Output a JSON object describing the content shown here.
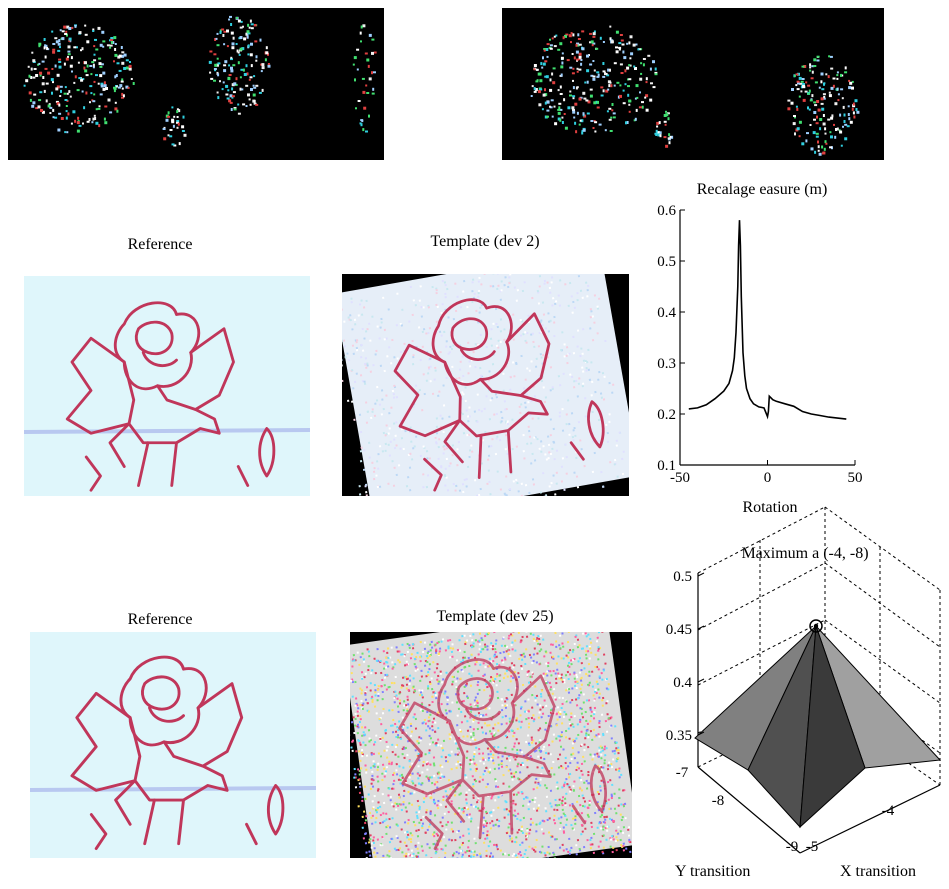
{
  "panels": {
    "ref1_caption": "Reference",
    "tpl1_caption": "Template (dev 2)",
    "ref2_caption": "Reference",
    "tpl2_caption": "Template (dev 25)"
  },
  "colors": {
    "edge_bg": "#000000",
    "image_bg": "#dff6fb",
    "sketch": "#c0365a",
    "noise": [
      "#ffffff",
      "#30d0e0",
      "#40e070",
      "#e04040",
      "#f0f0f0",
      "#9fd0ff"
    ]
  },
  "chart_data": [
    {
      "type": "line",
      "title": "Recalage easure (m)",
      "xlabel": "Rotation",
      "ylabel": "",
      "xlim": [
        -50,
        50
      ],
      "ylim": [
        0.1,
        0.6
      ],
      "xticks": [
        "-50",
        "0",
        "50"
      ],
      "yticks": [
        "0.1",
        "0.2",
        "0.3",
        "0.4",
        "0.5",
        "0.6"
      ],
      "grid": false,
      "x": [
        -45,
        -40,
        -35,
        -30,
        -25,
        -22,
        -20,
        -19,
        -18,
        -17,
        -16.5,
        -16,
        -15.5,
        -15,
        -14,
        -13,
        -12,
        -10,
        -8,
        -5,
        -2,
        0,
        0.5,
        1,
        3,
        5,
        10,
        15,
        20,
        25,
        30,
        35,
        40,
        45
      ],
      "y": [
        0.21,
        0.212,
        0.218,
        0.23,
        0.245,
        0.26,
        0.285,
        0.31,
        0.36,
        0.45,
        0.53,
        0.58,
        0.53,
        0.43,
        0.32,
        0.275,
        0.25,
        0.23,
        0.22,
        0.214,
        0.212,
        0.195,
        0.205,
        0.235,
        0.228,
        0.225,
        0.22,
        0.215,
        0.205,
        0.2,
        0.197,
        0.194,
        0.192,
        0.19
      ]
    },
    {
      "type": "surface",
      "title": "Maximum a (-4, -8)",
      "xlabel": "X transition",
      "ylabel": "Y transition",
      "zlim": [
        0.3,
        0.5
      ],
      "zticks": [
        "0.5",
        "0.45",
        "0.4",
        "0.35"
      ],
      "xticks": [
        "-5",
        "-4"
      ],
      "yticks": [
        "-9",
        "-8",
        "-7"
      ],
      "grid": true,
      "peak": {
        "x": -4,
        "y": -8,
        "z": 0.45
      },
      "faces_shade": [
        "#808080",
        "#a0a0a0",
        "#505050",
        "#3a3a3a"
      ]
    }
  ]
}
